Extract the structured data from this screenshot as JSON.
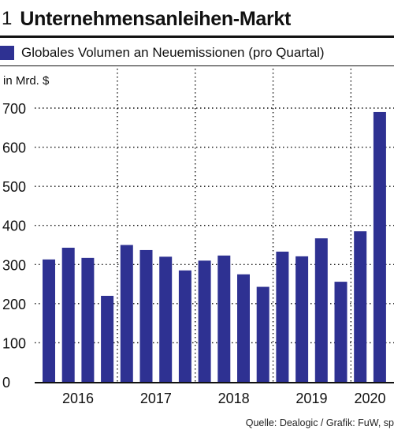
{
  "header": {
    "number": "1",
    "title": "Unternehmensanleihen-Markt"
  },
  "legend": {
    "label": "Globales Volumen an Neuemissionen (pro Quartal)"
  },
  "unit_label": "in Mrd. $",
  "source": "Quelle: Dealogic / Grafik: FuW, sp",
  "colors": {
    "bar": "#2e3192",
    "text": "#111111",
    "grid": "#111111"
  },
  "chart_data": {
    "type": "bar",
    "title": "Unternehmensanleihen-Markt",
    "ylabel": "in Mrd. $",
    "ylim": [
      0,
      700
    ],
    "yticks": [
      0,
      100,
      200,
      300,
      400,
      500,
      600,
      700
    ],
    "grid": true,
    "legend_position": "top",
    "year_labels": [
      "2016",
      "2017",
      "2018",
      "2019",
      "2020"
    ],
    "categories": [
      "2016 Q1",
      "2016 Q2",
      "2016 Q3",
      "2016 Q4",
      "2017 Q1",
      "2017 Q2",
      "2017 Q3",
      "2017 Q4",
      "2018 Q1",
      "2018 Q2",
      "2018 Q3",
      "2018 Q4",
      "2019 Q1",
      "2019 Q2",
      "2019 Q3",
      "2019 Q4",
      "2020 Q1",
      "2020 Q2"
    ],
    "series": [
      {
        "name": "Globales Volumen an Neuemissionen (pro Quartal)",
        "values": [
          313,
          343,
          317,
          220,
          350,
          337,
          320,
          285,
          310,
          323,
          275,
          243,
          333,
          321,
          367,
          256,
          385,
          690
        ]
      }
    ]
  }
}
